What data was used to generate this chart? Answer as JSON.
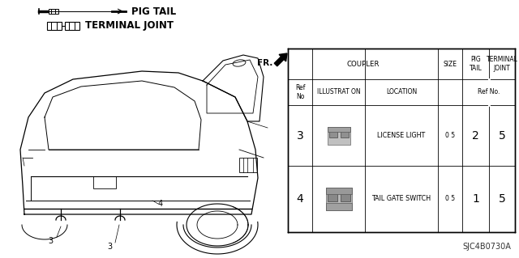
{
  "bg_color": "#ffffff",
  "title_code": "SJC4B0730A",
  "pig_tail_label": "PIG TAIL",
  "terminal_joint_label": "TERMINAL JOINT",
  "fr_label": "FR.",
  "table": {
    "rows": [
      {
        "ref": "3",
        "location": "LICENSE LIGHT",
        "size": "0 5",
        "pig_tail": "2",
        "terminal_joint": "5"
      },
      {
        "ref": "4",
        "location": "TAIL GATE SWITCH",
        "size": "0 5",
        "pig_tail": "1",
        "terminal_joint": "5"
      }
    ]
  },
  "font_size_tiny": 5.5,
  "font_size_small": 6.2,
  "font_size_medium": 7.0,
  "font_size_large": 8.5,
  "font_size_ref": 10,
  "font_size_bold_label": 8.5,
  "font_size_title": 7
}
